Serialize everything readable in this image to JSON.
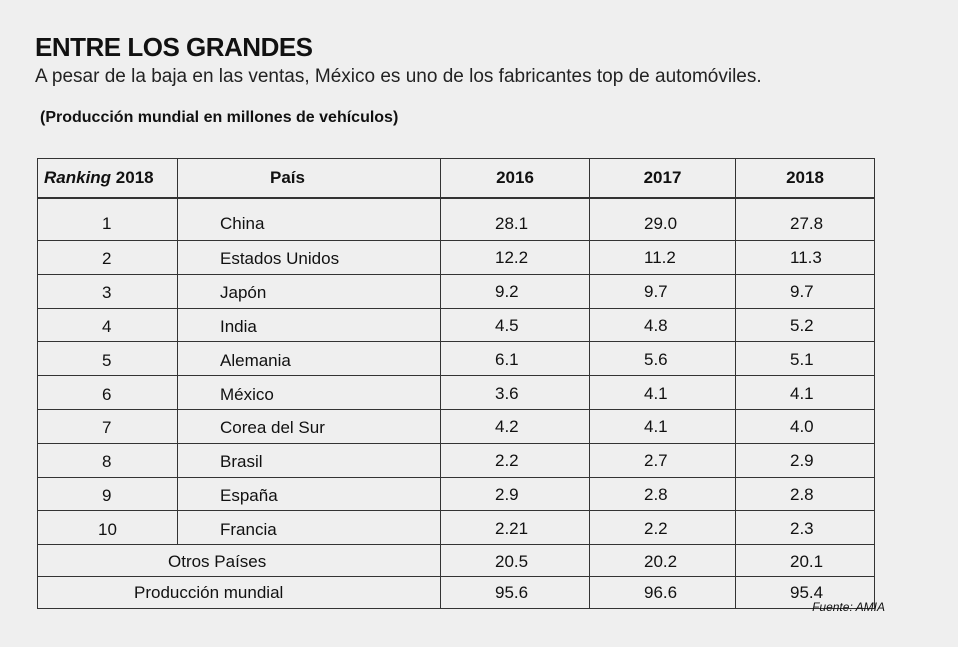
{
  "header": {
    "title": "ENTRE LOS GRANDES",
    "subtitle": "A pesar de la baja en las ventas, México es uno de los fabricantes top de automóviles.",
    "unit_note": "(Producción mundial en millones de vehículos)"
  },
  "table": {
    "columns": {
      "rank_italic": "Ranking",
      "rank_year": " 2018",
      "country": "País",
      "year1": "2016",
      "year2": "2017",
      "year3": "2018"
    },
    "rows": [
      {
        "rank": "1",
        "country": "China",
        "y2016": "28.1",
        "y2017": "29.0",
        "y2018": "27.8"
      },
      {
        "rank": "2",
        "country": "Estados Unidos",
        "y2016": "12.2",
        "y2017": "11.2",
        "y2018": "11.3"
      },
      {
        "rank": "3",
        "country": "Japón",
        "y2016": "9.2",
        "y2017": "9.7",
        "y2018": "9.7"
      },
      {
        "rank": "4",
        "country": "India",
        "y2016": "4.5",
        "y2017": "4.8",
        "y2018": "5.2"
      },
      {
        "rank": "5",
        "country": "Alemania",
        "y2016": "6.1",
        "y2017": "5.6",
        "y2018": "5.1"
      },
      {
        "rank": "6",
        "country": "México",
        "y2016": "3.6",
        "y2017": "4.1",
        "y2018": "4.1"
      },
      {
        "rank": "7",
        "country": "Corea del Sur",
        "y2016": "4.2",
        "y2017": "4.1",
        "y2018": "4.0"
      },
      {
        "rank": "8",
        "country": "Brasil",
        "y2016": "2.2",
        "y2017": "2.7",
        "y2018": "2.9"
      },
      {
        "rank": "9",
        "country": "España",
        "y2016": "2.9",
        "y2017": "2.8",
        "y2018": "2.8"
      },
      {
        "rank": "10",
        "country": "Francia",
        "y2016": "2.21",
        "y2017": "2.2",
        "y2018": "2.3"
      }
    ],
    "others": {
      "label": "Otros Países",
      "y2016": "20.5",
      "y2017": "20.2",
      "y2018": "20.1"
    },
    "total": {
      "label": "Producción mundial",
      "y2016": "95.6",
      "y2017": "96.6",
      "y2018": "95.4"
    }
  },
  "footer": {
    "source": "Fuente: AMIA"
  }
}
